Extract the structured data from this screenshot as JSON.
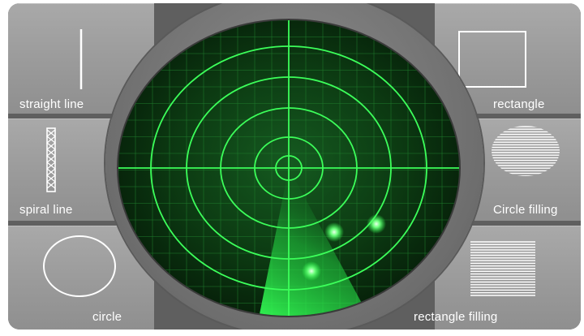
{
  "buttons": {
    "straight_line": "straight line",
    "spiral_line": "spiral line",
    "circle": "circle",
    "rectangle": "rectangle",
    "circle_filling": "Circle filling",
    "rectangle_filling": "rectangle filling"
  },
  "radar": {
    "screen_color": "#0d3a14",
    "line_color": "#3cff5a",
    "blip_count": 3
  }
}
